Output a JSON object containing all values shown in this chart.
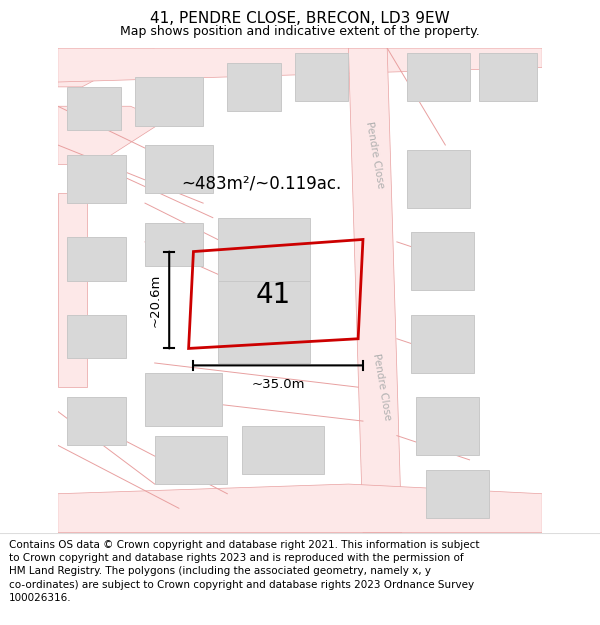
{
  "title": "41, PENDRE CLOSE, BRECON, LD3 9EW",
  "subtitle": "Map shows position and indicative extent of the property.",
  "footer": "Contains OS data © Crown copyright and database right 2021. This information is subject\nto Crown copyright and database rights 2023 and is reproduced with the permission of\nHM Land Registry. The polygons (including the associated geometry, namely x, y\nco-ordinates) are subject to Crown copyright and database rights 2023 Ordnance Survey\n100026316.",
  "map_bg": "#f8f8f8",
  "road_line_color": "#e8a0a0",
  "road_fill_color": "#fde8e8",
  "building_fill": "#d8d8d8",
  "building_edge": "#c8c8c8",
  "plot_color": "#cc0000",
  "area_text": "~483m²/~0.119ac.",
  "plot_label": "41",
  "dim_width": "~35.0m",
  "dim_height": "~20.6m",
  "street_label": "Pendre Close",
  "title_fontsize": 11,
  "subtitle_fontsize": 9,
  "footer_fontsize": 7.5
}
